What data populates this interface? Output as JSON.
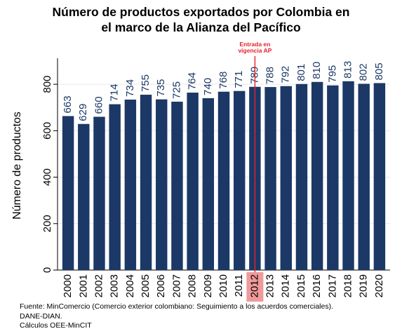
{
  "title": "Número de productos exportados  por Colombia en\nel marco de la Alianza del Pacífico",
  "source_lines": [
    "Fuente: MinComercio (Comercio exterior colombiano: Seguimiento a los acuerdos comerciales).",
    "DANE-DIAN.",
    "Cálculos OEE-MinCIT"
  ],
  "colors": {
    "bar": "#1b3866",
    "value_label": "#1b3866",
    "marker": "#e8202a",
    "highlight": "#ef9a9a",
    "plot_bg": "#ffffff",
    "grid": "#e6e6e6"
  },
  "chart_data": {
    "type": "bar",
    "title": "Número de productos exportados  por Colombia en el marco de la Alianza del Pacífico",
    "xlabel": "",
    "ylabel": "Número de productos",
    "categories": [
      "2000",
      "2001",
      "2002",
      "2003",
      "2004",
      "2005",
      "2006",
      "2007",
      "2008",
      "2009",
      "2010",
      "2011",
      "2012",
      "2013",
      "2014",
      "2015",
      "2016",
      "2017",
      "2018",
      "2019",
      "2020"
    ],
    "values": [
      663,
      629,
      660,
      714,
      734,
      755,
      735,
      725,
      764,
      740,
      768,
      771,
      789,
      788,
      792,
      801,
      810,
      795,
      813,
      802,
      805
    ],
    "yticks": [
      0,
      200,
      400,
      600,
      800
    ],
    "ylim": [
      0,
      900
    ],
    "grid": true,
    "highlight_category": "2012",
    "annotation": {
      "text": "Entrada en\nvigencia AP",
      "at_category": "2012"
    }
  }
}
